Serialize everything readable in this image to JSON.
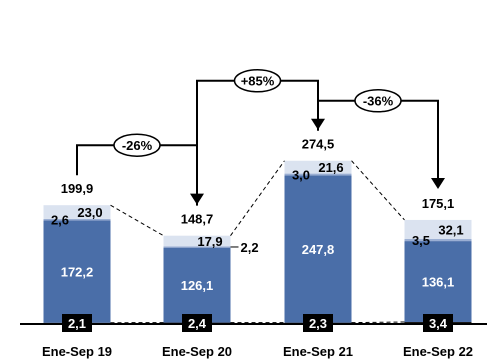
{
  "chart_data": {
    "type": "bar",
    "stacked": true,
    "categories": [
      "Ene-Sep 19",
      "Ene-Sep 20",
      "Ene-Sep 21",
      "Ene-Sep 22"
    ],
    "series": [
      {
        "values": [
          2.1,
          2.4,
          2.3,
          3.4
        ],
        "labels": [
          "2,1",
          "2,4",
          "2,3",
          "3,4"
        ],
        "color": "#1a1a1a"
      },
      {
        "values": [
          172.2,
          126.1,
          247.8,
          136.1
        ],
        "labels": [
          "172,2",
          "126,1",
          "247,8",
          "136,1"
        ],
        "color": "#4a6ea8"
      },
      {
        "values": [
          2.6,
          2.2,
          3.0,
          3.5
        ],
        "labels": [
          "2,6",
          "2,2",
          "3,0",
          "3,5"
        ],
        "color": "#9aaed3"
      },
      {
        "values": [
          23.0,
          17.9,
          21.6,
          32.1
        ],
        "labels": [
          "23,0",
          "17,9",
          "21,6",
          "32,1"
        ],
        "color": "#dbe3f0"
      }
    ],
    "totals": [
      199.9,
      148.7,
      274.5,
      175.1
    ],
    "total_labels": [
      "199,9",
      "148,7",
      "274,5",
      "175,1"
    ],
    "changes": [
      {
        "from": 0,
        "to": 1,
        "label": "-26%"
      },
      {
        "from": 1,
        "to": 2,
        "label": "+85%"
      },
      {
        "from": 2,
        "to": 3,
        "label": "-36%"
      }
    ],
    "ylim": [
      0,
      280
    ],
    "grid": false,
    "legend": "none"
  }
}
